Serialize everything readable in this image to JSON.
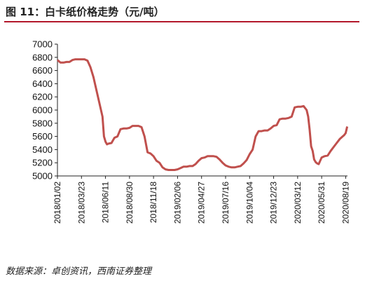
{
  "title": "图 11：白卡纸价格走势（元/吨）",
  "source": "数据来源：卓创资讯，西南证券整理",
  "colors": {
    "line": "#c0504d",
    "accent": "#b3172b",
    "axis": "#222222"
  },
  "chart_data": {
    "type": "line",
    "title": "",
    "xlabel": "",
    "ylabel": "",
    "ylim": [
      5000,
      7000
    ],
    "yticks": [
      5000,
      5200,
      5400,
      5600,
      5800,
      6000,
      6200,
      6400,
      6600,
      6800,
      7000
    ],
    "xticks": [
      "2018/01/02",
      "2018/03/23",
      "2018/06/11",
      "2018/08/30",
      "2018/11/18",
      "2019/02/06",
      "2019/04/27",
      "2019/07/16",
      "2019/10/04",
      "2019/12/23",
      "2020/03/12",
      "2020/05/31",
      "2020/08/19"
    ],
    "grid": false,
    "series": [
      {
        "x": [
          "2018/01/02",
          "2018/01/12",
          "2018/01/22",
          "2018/02/01",
          "2018/02/11",
          "2018/02/21",
          "2018/03/03",
          "2018/03/13",
          "2018/03/23",
          "2018/04/02",
          "2018/04/12",
          "2018/04/22",
          "2018/05/02",
          "2018/05/12",
          "2018/05/22",
          "2018/06/01",
          "2018/06/06",
          "2018/06/11",
          "2018/06/16",
          "2018/06/21",
          "2018/07/01",
          "2018/07/11",
          "2018/07/21",
          "2018/07/31",
          "2018/08/10",
          "2018/08/20",
          "2018/08/30",
          "2018/09/09",
          "2018/09/19",
          "2018/09/29",
          "2018/10/09",
          "2018/10/19",
          "2018/10/29",
          "2018/11/08",
          "2018/11/18",
          "2018/11/28",
          "2018/12/08",
          "2018/12/18",
          "2018/12/28",
          "2019/01/07",
          "2019/01/17",
          "2019/01/27",
          "2019/02/06",
          "2019/02/16",
          "2019/02/26",
          "2019/03/08",
          "2019/03/18",
          "2019/03/28",
          "2019/04/07",
          "2019/04/17",
          "2019/04/27",
          "2019/05/07",
          "2019/05/17",
          "2019/05/27",
          "2019/06/06",
          "2019/06/16",
          "2019/06/26",
          "2019/07/06",
          "2019/07/16",
          "2019/07/26",
          "2019/08/05",
          "2019/08/15",
          "2019/08/25",
          "2019/09/04",
          "2019/09/14",
          "2019/09/24",
          "2019/10/04",
          "2019/10/14",
          "2019/10/24",
          "2019/11/03",
          "2019/11/13",
          "2019/11/23",
          "2019/12/03",
          "2019/12/13",
          "2019/12/23",
          "2020/01/02",
          "2020/01/12",
          "2020/01/22",
          "2020/02/01",
          "2020/02/11",
          "2020/02/21",
          "2020/03/02",
          "2020/03/12",
          "2020/03/22",
          "2020/04/01",
          "2020/04/11",
          "2020/04/16",
          "2020/04/21",
          "2020/04/26",
          "2020/05/01",
          "2020/05/06",
          "2020/05/11",
          "2020/05/16",
          "2020/05/21",
          "2020/05/31",
          "2020/06/10",
          "2020/06/20",
          "2020/06/30",
          "2020/07/10",
          "2020/07/20",
          "2020/07/30",
          "2020/08/09",
          "2020/08/14",
          "2020/08/19",
          "2020/08/24"
        ],
        "y": [
          6760,
          6720,
          6720,
          6730,
          6730,
          6760,
          6770,
          6770,
          6770,
          6770,
          6750,
          6650,
          6500,
          6300,
          6100,
          5900,
          5600,
          5520,
          5480,
          5490,
          5500,
          5580,
          5600,
          5710,
          5720,
          5720,
          5730,
          5760,
          5760,
          5760,
          5740,
          5600,
          5360,
          5340,
          5300,
          5230,
          5200,
          5130,
          5100,
          5090,
          5090,
          5090,
          5100,
          5120,
          5140,
          5140,
          5150,
          5150,
          5180,
          5230,
          5270,
          5280,
          5300,
          5300,
          5300,
          5290,
          5250,
          5200,
          5160,
          5140,
          5130,
          5130,
          5140,
          5150,
          5190,
          5240,
          5330,
          5400,
          5600,
          5680,
          5680,
          5690,
          5690,
          5720,
          5760,
          5770,
          5860,
          5870,
          5870,
          5880,
          5900,
          6040,
          6050,
          6050,
          6060,
          6000,
          5900,
          5700,
          5450,
          5380,
          5250,
          5210,
          5190,
          5180,
          5280,
          5300,
          5310,
          5380,
          5440,
          5500,
          5560,
          5600,
          5620,
          5650,
          5750
        ]
      }
    ]
  }
}
